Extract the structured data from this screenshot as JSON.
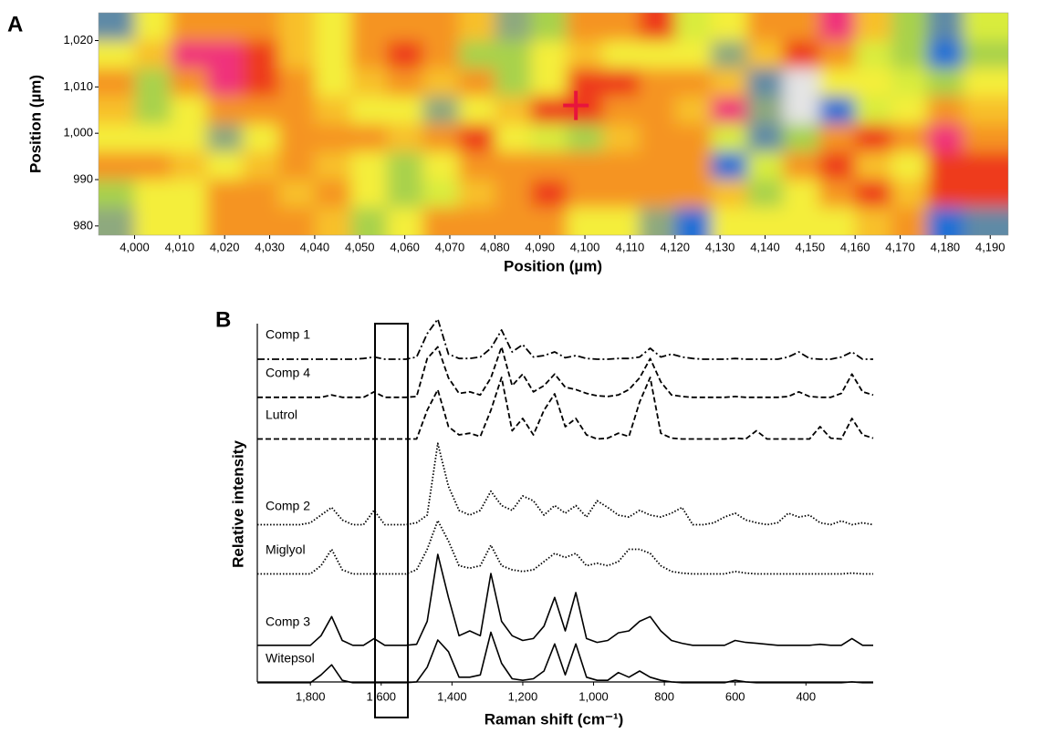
{
  "chart_data": [
    {
      "type": "heatmap",
      "panel_label": "A",
      "xlabel": "Position (µm)",
      "ylabel": "Position (µm)",
      "xlim": [
        3992,
        4194
      ],
      "ylim": [
        978,
        1026
      ],
      "xticks": [
        {
          "value": 4000,
          "label": "4,000"
        },
        {
          "value": 4010,
          "label": "4,010"
        },
        {
          "value": 4020,
          "label": "4,020"
        },
        {
          "value": 4030,
          "label": "4,030"
        },
        {
          "value": 4040,
          "label": "4,040"
        },
        {
          "value": 4050,
          "label": "4,050"
        },
        {
          "value": 4060,
          "label": "4,060"
        },
        {
          "value": 4070,
          "label": "4,070"
        },
        {
          "value": 4080,
          "label": "4,080"
        },
        {
          "value": 4090,
          "label": "4,090"
        },
        {
          "value": 4100,
          "label": "4,100"
        },
        {
          "value": 4110,
          "label": "4,110"
        },
        {
          "value": 4120,
          "label": "4,120"
        },
        {
          "value": 4130,
          "label": "4,130"
        },
        {
          "value": 4140,
          "label": "4,140"
        },
        {
          "value": 4150,
          "label": "4,150"
        },
        {
          "value": 4160,
          "label": "4,160"
        },
        {
          "value": 4170,
          "label": "4,170"
        },
        {
          "value": 4180,
          "label": "4,180"
        },
        {
          "value": 4190,
          "label": "4,190"
        }
      ],
      "yticks": [
        980,
        990,
        {
          "value": 1000,
          "label": "1,000"
        },
        {
          "value": 1010,
          "label": "1,010"
        },
        {
          "value": 1020,
          "label": "1,020"
        }
      ],
      "colorscale": [
        "#e4e4e4",
        "#1f6fd6",
        "#5f8aa6",
        "#8ea97e",
        "#a8d24c",
        "#d9ec3e",
        "#f4ee3a",
        "#f8c02c",
        "#f59423",
        "#ee3a1c",
        "#f0307c"
      ],
      "x": [
        3996,
        4004,
        4012,
        4020,
        4028,
        4036,
        4044,
        4052,
        4060,
        4068,
        4076,
        4084,
        4092,
        4100,
        4108,
        4116,
        4124,
        4132,
        4140,
        4148,
        4156,
        4164,
        4172,
        4180,
        4188
      ],
      "y": [
        1023,
        1017,
        1011,
        1005,
        999,
        993,
        987,
        981
      ],
      "z": [
        [
          2,
          6,
          8,
          8,
          8,
          7,
          6,
          8,
          8,
          8,
          7,
          3,
          4,
          8,
          8,
          9,
          5,
          6,
          8,
          8,
          10,
          7,
          4,
          2,
          5
        ],
        [
          6,
          7,
          10,
          10,
          9,
          7,
          6,
          8,
          9,
          8,
          4,
          4,
          6,
          7,
          6,
          6,
          6,
          3,
          7,
          9,
          8,
          5,
          4,
          1,
          4
        ],
        [
          8,
          4,
          8,
          10,
          9,
          8,
          6,
          7,
          8,
          7,
          8,
          4,
          6,
          9,
          9,
          8,
          8,
          7,
          2,
          0,
          6,
          6,
          5,
          4,
          6
        ],
        [
          7,
          4,
          6,
          8,
          8,
          8,
          7,
          6,
          6,
          3,
          6,
          7,
          9,
          9,
          8,
          8,
          7,
          10,
          3,
          0,
          1,
          5,
          6,
          8,
          7
        ],
        [
          6,
          6,
          6,
          3,
          6,
          8,
          8,
          8,
          7,
          8,
          9,
          6,
          5,
          4,
          7,
          8,
          8,
          5,
          2,
          4,
          8,
          9,
          8,
          10,
          8
        ],
        [
          8,
          8,
          7,
          6,
          7,
          8,
          7,
          6,
          4,
          6,
          8,
          8,
          8,
          8,
          8,
          8,
          8,
          1,
          5,
          8,
          9,
          7,
          6,
          9,
          9
        ],
        [
          4,
          6,
          6,
          8,
          8,
          7,
          8,
          6,
          4,
          5,
          7,
          8,
          9,
          8,
          8,
          8,
          8,
          7,
          4,
          6,
          8,
          9,
          7,
          9,
          9
        ],
        [
          3,
          6,
          6,
          8,
          8,
          8,
          7,
          4,
          6,
          8,
          8,
          8,
          8,
          6,
          6,
          3,
          1,
          6,
          6,
          6,
          6,
          7,
          8,
          1,
          2
        ]
      ],
      "marker": {
        "x": 4098,
        "y": 1006,
        "color": "#e8143c"
      }
    },
    {
      "type": "line",
      "panel_label": "B",
      "xlabel": "Raman shift (cm⁻¹)",
      "ylabel": "Relative intensity",
      "xlim": [
        1950,
        210
      ],
      "xticks": [
        {
          "value": 1800,
          "label": "1,800"
        },
        {
          "value": 1600,
          "label": "1,600"
        },
        {
          "value": 1400,
          "label": "1,400"
        },
        {
          "value": 1200,
          "label": "1,200"
        },
        {
          "value": 1000,
          "label": "1,000"
        },
        800,
        600,
        400
      ],
      "x": [
        1950,
        1920,
        1890,
        1860,
        1830,
        1800,
        1770,
        1740,
        1710,
        1680,
        1650,
        1620,
        1590,
        1560,
        1530,
        1500,
        1470,
        1440,
        1410,
        1380,
        1350,
        1320,
        1290,
        1260,
        1230,
        1200,
        1170,
        1140,
        1110,
        1080,
        1050,
        1020,
        990,
        960,
        930,
        900,
        870,
        840,
        810,
        780,
        750,
        720,
        690,
        660,
        630,
        600,
        570,
        540,
        510,
        480,
        450,
        420,
        390,
        360,
        330,
        300,
        270,
        240,
        210
      ],
      "series": [
        {
          "name": "Comp 1",
          "color": "#000000",
          "line_style": "dashdot",
          "values": [
            5,
            5,
            5,
            5,
            5,
            5,
            5,
            5,
            5,
            5,
            6,
            8,
            5,
            5,
            5,
            8,
            40,
            60,
            12,
            6,
            6,
            8,
            20,
            45,
            15,
            25,
            8,
            10,
            15,
            7,
            10,
            6,
            5,
            5,
            6,
            6,
            8,
            20,
            8,
            12,
            8,
            6,
            5,
            5,
            5,
            6,
            5,
            5,
            5,
            5,
            8,
            15,
            6,
            5,
            5,
            8,
            15,
            5,
            5
          ]
        },
        {
          "name": "Comp 4",
          "color": "#000000",
          "line_style": "dashed",
          "values": [
            5,
            5,
            5,
            5,
            5,
            5,
            5,
            8,
            5,
            5,
            5,
            12,
            5,
            5,
            5,
            6,
            55,
            70,
            30,
            10,
            12,
            8,
            30,
            70,
            20,
            35,
            12,
            20,
            35,
            18,
            15,
            10,
            7,
            6,
            8,
            15,
            30,
            55,
            25,
            8,
            6,
            5,
            5,
            5,
            5,
            6,
            5,
            5,
            5,
            5,
            6,
            12,
            6,
            5,
            5,
            10,
            35,
            12,
            8
          ]
        },
        {
          "name": "Lutrol",
          "color": "#000000",
          "line_style": "dashed",
          "values": [
            5,
            5,
            5,
            5,
            5,
            5,
            5,
            5,
            5,
            5,
            5,
            5,
            5,
            5,
            5,
            5,
            40,
            65,
            20,
            10,
            12,
            8,
            40,
            80,
            15,
            30,
            10,
            40,
            60,
            20,
            30,
            10,
            5,
            6,
            12,
            8,
            50,
            80,
            12,
            6,
            5,
            5,
            5,
            5,
            5,
            6,
            5,
            15,
            5,
            5,
            5,
            5,
            5,
            20,
            6,
            5,
            30,
            10,
            6
          ]
        },
        {
          "name": "Comp 2",
          "color": "#000000",
          "line_style": "dotted",
          "values": [
            10,
            10,
            10,
            10,
            10,
            12,
            20,
            28,
            15,
            10,
            10,
            25,
            10,
            10,
            10,
            12,
            20,
            95,
            50,
            25,
            20,
            25,
            45,
            30,
            25,
            40,
            35,
            20,
            30,
            22,
            30,
            18,
            35,
            28,
            20,
            18,
            25,
            20,
            18,
            22,
            28,
            10,
            10,
            12,
            18,
            22,
            15,
            12,
            10,
            12,
            22,
            18,
            20,
            12,
            10,
            14,
            10,
            12,
            10
          ]
        },
        {
          "name": "Miglyol",
          "color": "#000000",
          "line_style": "dotted",
          "values": [
            5,
            5,
            5,
            5,
            5,
            5,
            15,
            35,
            10,
            5,
            5,
            5,
            5,
            5,
            5,
            10,
            35,
            70,
            45,
            15,
            12,
            15,
            40,
            15,
            10,
            8,
            10,
            20,
            30,
            25,
            30,
            15,
            18,
            15,
            20,
            35,
            35,
            30,
            15,
            8,
            6,
            5,
            5,
            5,
            5,
            8,
            6,
            5,
            5,
            5,
            5,
            5,
            5,
            5,
            5,
            5,
            6,
            5,
            5
          ]
        },
        {
          "name": "Comp 3",
          "color": "#000000",
          "line_style": "solid",
          "values": [
            5,
            5,
            5,
            5,
            5,
            5,
            15,
            35,
            10,
            5,
            5,
            12,
            5,
            5,
            5,
            6,
            30,
            100,
            55,
            15,
            20,
            15,
            80,
            30,
            15,
            10,
            12,
            25,
            55,
            20,
            60,
            12,
            8,
            10,
            18,
            20,
            30,
            35,
            20,
            10,
            7,
            5,
            5,
            5,
            5,
            10,
            8,
            7,
            6,
            5,
            5,
            5,
            5,
            6,
            5,
            5,
            12,
            5,
            5
          ]
        },
        {
          "name": "Witepsol",
          "color": "#000000",
          "line_style": "solid",
          "values": [
            5,
            5,
            5,
            5,
            5,
            5,
            15,
            28,
            8,
            5,
            5,
            5,
            5,
            5,
            5,
            6,
            25,
            60,
            45,
            12,
            12,
            15,
            70,
            30,
            10,
            8,
            10,
            20,
            55,
            15,
            55,
            12,
            8,
            8,
            18,
            12,
            20,
            12,
            8,
            6,
            5,
            5,
            5,
            5,
            5,
            8,
            6,
            5,
            5,
            5,
            5,
            5,
            5,
            5,
            5,
            5,
            6,
            5,
            5
          ]
        }
      ]
    }
  ]
}
